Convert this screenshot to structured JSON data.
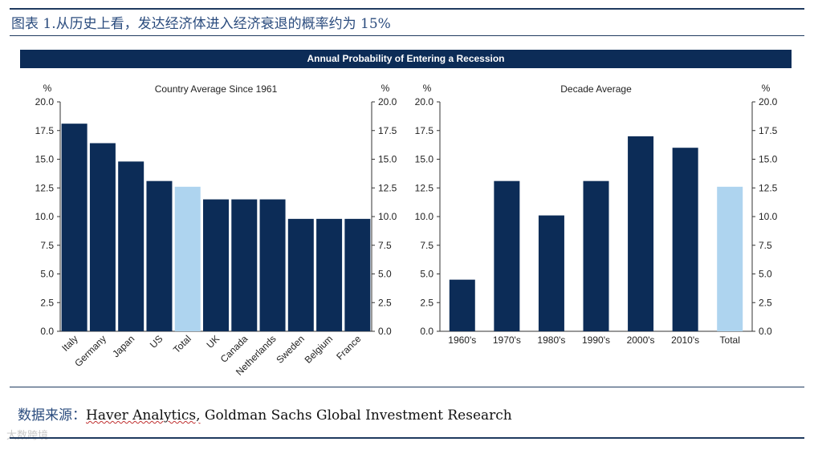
{
  "caption": "图表 1.从历史上看，发达经济体进入经济衰退的概率约为 15%",
  "source": {
    "label": "数据来源：",
    "text_part1": "Haver Analytics,",
    "text_part2": " Goldman Sachs Global Investment Research"
  },
  "watermark": "大数跨境",
  "colors": {
    "dark": "#0c2c57",
    "light": "#aed4ef",
    "banner": "#0c2c57"
  },
  "chart_data": [
    {
      "type": "bar",
      "banner_title": "Annual Probability of Entering a Recession",
      "title": "Country Average Since 1961",
      "ylabel_left": "%",
      "ylabel_right": "%",
      "ylim": [
        0,
        20
      ],
      "yticks": [
        "0.0",
        "2.5",
        "5.0",
        "7.5",
        "10.0",
        "12.5",
        "15.0",
        "17.5",
        "20.0"
      ],
      "categories": [
        "Italy",
        "Germany",
        "Japan",
        "US",
        "Total",
        "UK",
        "Canada",
        "Netherlands",
        "Sweden",
        "Belgium",
        "France"
      ],
      "values": [
        18.1,
        16.4,
        14.8,
        13.1,
        12.6,
        11.5,
        11.5,
        11.5,
        9.8,
        9.8,
        9.8
      ],
      "highlight": [
        "Total"
      ]
    },
    {
      "type": "bar",
      "title": "Decade Average",
      "ylabel_left": "%",
      "ylabel_right": "%",
      "ylim": [
        0,
        20
      ],
      "yticks": [
        "0.0",
        "2.5",
        "5.0",
        "7.5",
        "10.0",
        "12.5",
        "15.0",
        "17.5",
        "20.0"
      ],
      "categories": [
        "1960's",
        "1970's",
        "1980's",
        "1990's",
        "2000's",
        "2010's",
        "Total"
      ],
      "values": [
        4.5,
        13.1,
        10.1,
        13.1,
        17.0,
        16.0,
        12.6
      ],
      "highlight": [
        "Total"
      ]
    }
  ]
}
